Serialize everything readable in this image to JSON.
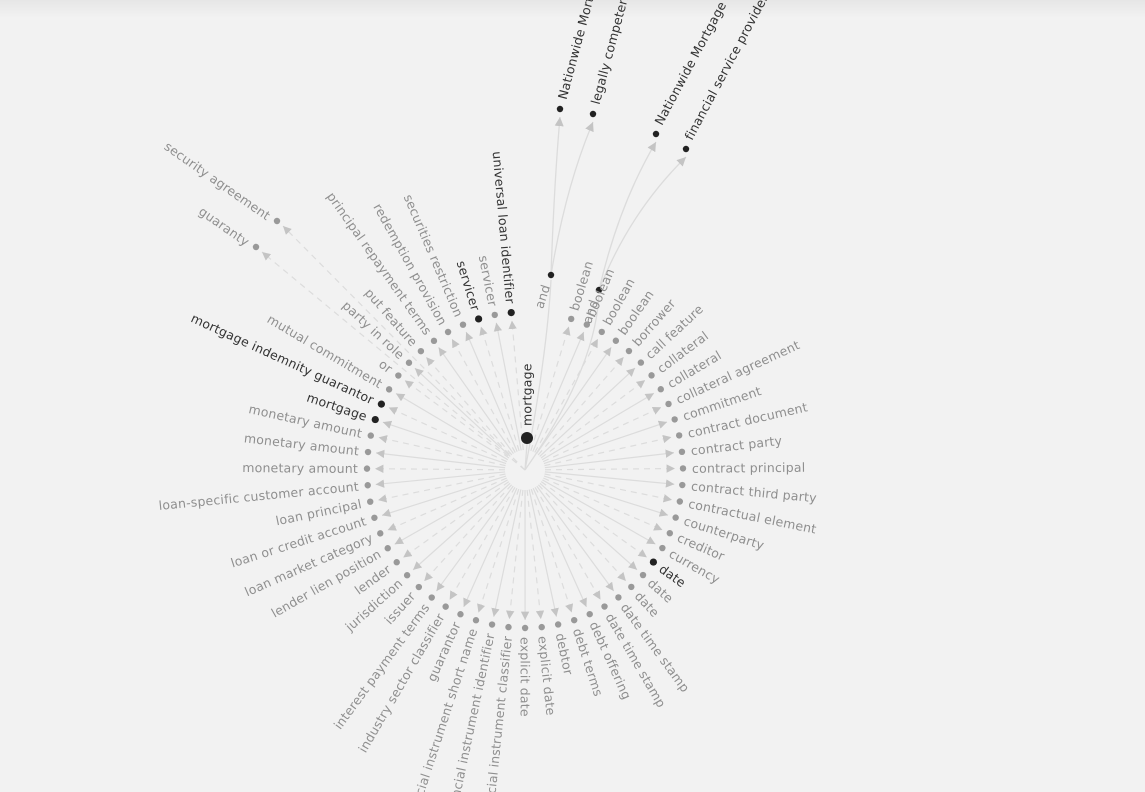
{
  "colors": {
    "background": "#f2f2f2",
    "edge": "#dcdcdc",
    "arrow": "#c4c4c4",
    "node_faded": "#999999",
    "node_active": "#222222",
    "label_faded": "#8f8f8f",
    "label_active": "#333333"
  },
  "graph": {
    "center": {
      "label": "mortgage"
    },
    "intermediates": [
      {
        "id": "and1",
        "label": "and"
      },
      {
        "id": "and2",
        "label": "and"
      }
    ],
    "far_nodes": [
      {
        "label": "Nationwide Mortgage",
        "from": "and1"
      },
      {
        "label": "legally competent",
        "from": "and1"
      },
      {
        "label": "Nationwide Mortgage",
        "from": "and2"
      },
      {
        "label": "financial service provider",
        "from": "and2"
      }
    ],
    "leaves": [
      {
        "label": "boolean",
        "active": false
      },
      {
        "label": "boolean",
        "active": false
      },
      {
        "label": "boolean",
        "active": false
      },
      {
        "label": "boolean",
        "active": false
      },
      {
        "label": "borrower",
        "active": false
      },
      {
        "label": "call feature",
        "active": false
      },
      {
        "label": "collateral",
        "active": false
      },
      {
        "label": "collateral",
        "active": false
      },
      {
        "label": "collateral agreement",
        "active": false
      },
      {
        "label": "commitment",
        "active": false
      },
      {
        "label": "contract document",
        "active": false
      },
      {
        "label": "contract party",
        "active": false
      },
      {
        "label": "contract principal",
        "active": false
      },
      {
        "label": "contract third party",
        "active": false
      },
      {
        "label": "contractual element",
        "active": false
      },
      {
        "label": "counterparty",
        "active": false
      },
      {
        "label": "creditor",
        "active": false
      },
      {
        "label": "currency",
        "active": false
      },
      {
        "label": "date",
        "active": true
      },
      {
        "label": "date",
        "active": false
      },
      {
        "label": "date",
        "active": false
      },
      {
        "label": "date time stamp",
        "active": false
      },
      {
        "label": "date time stamp",
        "active": false
      },
      {
        "label": "debt offering",
        "active": false
      },
      {
        "label": "debt terms",
        "active": false
      },
      {
        "label": "debtor",
        "active": false
      },
      {
        "label": "explicit date",
        "active": false
      },
      {
        "label": "explicit date",
        "active": false
      },
      {
        "label": "financial instrument classifier",
        "active": false
      },
      {
        "label": "financial instrument identifier",
        "active": false
      },
      {
        "label": "financial instrument short name",
        "active": false
      },
      {
        "label": "guarantor",
        "active": false
      },
      {
        "label": "industry sector classifier",
        "active": false
      },
      {
        "label": "interest payment terms",
        "active": false
      },
      {
        "label": "issuer",
        "active": false
      },
      {
        "label": "jurisdiction",
        "active": false
      },
      {
        "label": "lender",
        "active": false
      },
      {
        "label": "lender lien position",
        "active": false
      },
      {
        "label": "loan market category",
        "active": false
      },
      {
        "label": "loan or credit account",
        "active": false
      },
      {
        "label": "loan principal",
        "active": false
      },
      {
        "label": "loan-specific customer account",
        "active": false
      },
      {
        "label": "monetary amount",
        "active": false
      },
      {
        "label": "monetary amount",
        "active": false
      },
      {
        "label": "monetary amount",
        "active": false
      },
      {
        "label": "mortgage",
        "active": true
      },
      {
        "label": "mortgage indemnity guarantor",
        "active": true
      },
      {
        "label": "mutual commitment",
        "active": false
      },
      {
        "label": "or",
        "active": false
      },
      {
        "label": "party in role",
        "active": false
      },
      {
        "label": "put feature",
        "active": false
      },
      {
        "label": "principal repayment terms",
        "active": false
      },
      {
        "label": "redemption provision",
        "active": false
      },
      {
        "label": "securities restriction",
        "active": false
      },
      {
        "label": "servicer",
        "active": true
      },
      {
        "label": "servicer",
        "active": false
      },
      {
        "label": "universal loan identifier",
        "active": true
      }
    ],
    "outer": [
      {
        "label": "guaranty",
        "active": false
      },
      {
        "label": "security agreement",
        "active": false
      }
    ]
  }
}
